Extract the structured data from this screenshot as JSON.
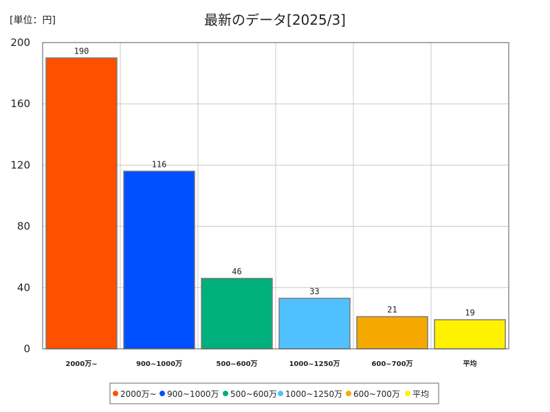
{
  "unit_label": "[単位：円]",
  "chart_data": {
    "type": "bar",
    "title": "最新のデータ[2025/3]",
    "xlabel": "",
    "ylabel": "",
    "ylim": [
      0,
      200
    ],
    "yticks": [
      "0",
      "40",
      "80",
      "120",
      "160",
      "200"
    ],
    "categories": [
      "2000万~",
      "900~1000万",
      "500~600万",
      "1000~1250万",
      "600~700万",
      "平均"
    ],
    "values": [
      190,
      116,
      46,
      33,
      21,
      19
    ],
    "value_labels": [
      "190",
      "116",
      "46",
      "33",
      "21",
      "19"
    ],
    "colors": [
      "#ff5000",
      "#0050ff",
      "#00b07c",
      "#50c0ff",
      "#f5a800",
      "#fff200"
    ],
    "legend": [
      "2000万~",
      "900~1000万",
      "500~600万",
      "1000~1250万",
      "600~700万",
      "平均"
    ],
    "legend_position": "bottom",
    "grid": true
  }
}
